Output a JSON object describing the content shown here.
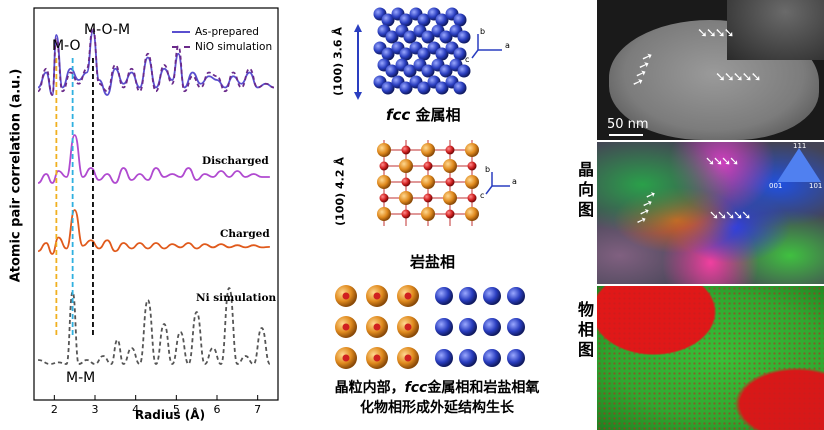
{
  "chart_data": {
    "type": "line",
    "xlabel": "Radius (Å)",
    "ylabel": "Atomic pair correlation (a.u.)",
    "xlim": [
      1.5,
      7.5
    ],
    "xticks": [
      "2",
      "3",
      "4",
      "5",
      "6",
      "7"
    ],
    "legend": [
      "As-prepared",
      "NiO simulation"
    ],
    "annotations": [
      "M-O",
      "M-O-M",
      "M-M"
    ],
    "series": [
      {
        "name": "As-prepared",
        "color": "#5a4fcf",
        "dash": false,
        "x": [
          1.6,
          1.8,
          1.95,
          2.05,
          2.2,
          2.4,
          2.6,
          2.8,
          2.95,
          3.1,
          3.3,
          3.5,
          3.7,
          3.9,
          4.1,
          4.3,
          4.5,
          4.7,
          4.9,
          5.05,
          5.2,
          5.4,
          5.6,
          5.8,
          6.0,
          6.2,
          6.4,
          6.6,
          6.8,
          7.0,
          7.2,
          7.4
        ],
        "y": [
          0.3,
          0.5,
          0.2,
          1.0,
          0.3,
          0.55,
          0.4,
          0.5,
          1.05,
          0.4,
          0.2,
          0.55,
          0.35,
          0.5,
          0.3,
          0.7,
          0.3,
          0.55,
          0.4,
          0.75,
          0.3,
          0.5,
          0.35,
          0.45,
          0.4,
          0.3,
          0.45,
          0.35,
          0.5,
          0.3,
          0.35,
          0.3
        ]
      },
      {
        "name": "NiO simulation",
        "color": "#6a2a8a",
        "dash": true,
        "x": [
          1.6,
          1.8,
          1.95,
          2.05,
          2.2,
          2.4,
          2.6,
          2.8,
          2.95,
          3.1,
          3.3,
          3.5,
          3.7,
          3.9,
          4.1,
          4.3,
          4.5,
          4.7,
          4.9,
          5.05,
          5.2,
          5.4,
          5.6,
          5.8,
          6.0,
          6.2,
          6.4,
          6.6,
          6.8,
          7.0,
          7.2,
          7.4
        ],
        "y": [
          0.25,
          0.55,
          0.2,
          0.95,
          0.25,
          0.5,
          0.35,
          0.55,
          1.1,
          0.35,
          0.25,
          0.6,
          0.3,
          0.55,
          0.25,
          0.75,
          0.25,
          0.6,
          0.35,
          0.85,
          0.25,
          0.45,
          0.3,
          0.5,
          0.45,
          0.25,
          0.5,
          0.3,
          0.55,
          0.3,
          0.35,
          0.3
        ]
      },
      {
        "name": "Discharged",
        "color": "#b04ad0",
        "dash": false,
        "x": [
          1.6,
          1.8,
          1.95,
          2.1,
          2.3,
          2.5,
          2.7,
          2.9,
          3.1,
          3.3,
          3.5,
          3.7,
          3.9,
          4.1,
          4.3,
          4.5,
          4.7,
          4.9,
          5.1,
          5.3,
          5.5,
          5.7,
          5.9,
          6.1,
          6.3,
          6.5,
          6.7,
          6.9,
          7.1,
          7.3
        ],
        "y": [
          0.2,
          0.35,
          0.2,
          0.4,
          0.3,
          1.0,
          0.3,
          0.45,
          0.25,
          0.35,
          0.2,
          0.45,
          0.25,
          0.35,
          0.25,
          0.45,
          0.3,
          0.35,
          0.3,
          0.45,
          0.25,
          0.35,
          0.3,
          0.4,
          0.3,
          0.4,
          0.3,
          0.35,
          0.3,
          0.3
        ]
      },
      {
        "name": "Charged",
        "color": "#e05a1c",
        "dash": false,
        "x": [
          1.6,
          1.8,
          1.95,
          2.1,
          2.3,
          2.5,
          2.7,
          2.9,
          3.1,
          3.3,
          3.5,
          3.7,
          3.9,
          4.1,
          4.3,
          4.5,
          4.7,
          4.9,
          5.1,
          5.3,
          5.5,
          5.7,
          5.9,
          6.1,
          6.3,
          6.5,
          6.7,
          6.9,
          7.1,
          7.3
        ],
        "y": [
          0.25,
          0.4,
          0.2,
          0.5,
          0.3,
          1.0,
          0.35,
          0.45,
          0.3,
          0.45,
          0.25,
          0.4,
          0.3,
          0.4,
          0.3,
          0.4,
          0.3,
          0.38,
          0.32,
          0.4,
          0.3,
          0.38,
          0.32,
          0.38,
          0.32,
          0.36,
          0.32,
          0.36,
          0.32,
          0.33
        ]
      },
      {
        "name": "Ni simulation",
        "color": "#555555",
        "dash": true,
        "x": [
          1.6,
          1.9,
          2.1,
          2.3,
          2.45,
          2.6,
          2.8,
          3.0,
          3.2,
          3.4,
          3.55,
          3.7,
          3.9,
          4.1,
          4.3,
          4.5,
          4.7,
          4.9,
          5.1,
          5.3,
          5.5,
          5.7,
          5.9,
          6.1,
          6.3,
          6.5,
          6.7,
          6.9,
          7.1,
          7.3
        ],
        "y": [
          0.15,
          0.1,
          0.12,
          0.1,
          1.0,
          0.1,
          0.15,
          0.1,
          0.2,
          0.1,
          0.4,
          0.1,
          0.3,
          0.1,
          0.9,
          0.1,
          0.6,
          0.1,
          0.5,
          0.1,
          0.75,
          0.1,
          0.3,
          0.1,
          1.05,
          0.1,
          0.2,
          0.1,
          0.55,
          0.1
        ]
      }
    ],
    "series_labels": [
      "Discharged",
      "Charged",
      "Ni simulation"
    ],
    "markers": [
      {
        "x": 2.05,
        "color": "#f0b020"
      },
      {
        "x": 2.45,
        "color": "#30b0e0"
      },
      {
        "x": 2.95,
        "color": "#000000"
      }
    ]
  },
  "structures": {
    "fcc_dim": "(100) 3.6 Å",
    "fcc_label_italic": "fcc",
    "fcc_label_rest": " 金属相",
    "rocksalt_dim": "(100) 4.2 Å",
    "rocksalt_label": "岩盐相",
    "axes": [
      "a",
      "b",
      "c"
    ],
    "caption_line1_a": "晶粒内部，",
    "caption_line1_italic": "fcc",
    "caption_line1_b": "金属相和岩盐相氧",
    "caption_line2": "化物相形成外延结构生长"
  },
  "images": {
    "scale_bar": "50 nm",
    "label_orientation": "晶向图",
    "label_phase": "物相图",
    "ipf_ticks": [
      "111",
      "001",
      "101"
    ]
  },
  "colors": {
    "rocksalt_metal": "#e08a1e",
    "rocksalt_oxygen": "#d02020",
    "fcc_atom": "#2a3ec0",
    "phase_red": "#e01818",
    "phase_green": "#30c030"
  }
}
